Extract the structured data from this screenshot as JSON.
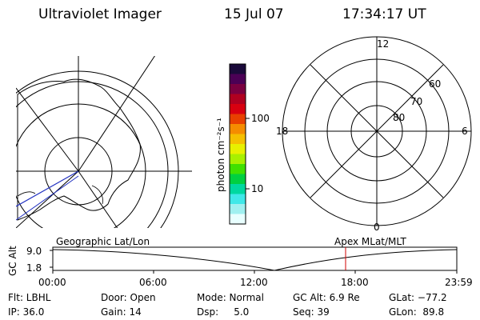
{
  "header": {
    "instrument": "Ultraviolet Imager",
    "date": "15 Jul 07",
    "time": "17:34:17 UT"
  },
  "colorbar": {
    "unit_label": "photon cm⁻²s⁻¹",
    "ticks": [
      "100",
      "10"
    ],
    "colors": [
      "#1a0a3a",
      "#4b0055",
      "#7a0040",
      "#b00020",
      "#d80010",
      "#e84000",
      "#f58c00",
      "#f5c000",
      "#e8f000",
      "#a8f000",
      "#40e000",
      "#00d040",
      "#00d8a0",
      "#40e8e8",
      "#a0f0f0",
      "#e8ffff"
    ]
  },
  "polar_plot": {
    "mlt_labels": {
      "top": "12",
      "left": "18",
      "right": "6",
      "bottom": "0"
    },
    "lat_labels": [
      "60",
      "70",
      "80"
    ]
  },
  "timeline": {
    "axis_label": "GC Alt",
    "y_ticks": [
      "9.0",
      "1.8"
    ],
    "left_title": "Geographic Lat/Lon",
    "right_title": "Apex MLat/MLT",
    "x_ticks": [
      "00:00",
      "06:00",
      "12:00",
      "18:00",
      "23:59"
    ],
    "marker_color": "#d00000"
  },
  "info": {
    "filter": "Flt: LBHL",
    "ip": "IP: 36.0",
    "door": "Door: Open",
    "gain": "Gain: 14",
    "mode": "Mode: Normal",
    "dsp": "Dsp:     5.0",
    "gc_alt": "GC Alt: 6.9 Re",
    "seq": "Seq: 39",
    "glat": "GLat: −77.2",
    "glon": "GLon:  89.8"
  }
}
